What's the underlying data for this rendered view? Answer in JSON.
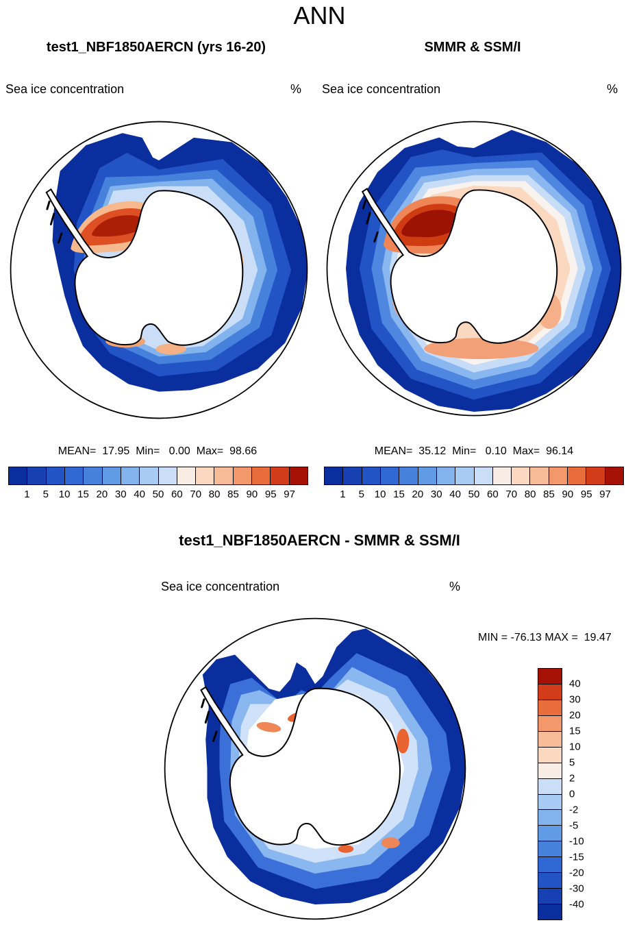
{
  "figure": {
    "title": "ANN"
  },
  "panels": {
    "model": {
      "title": "test1_NBF1850AERCN (yrs 16-20)",
      "variable": "Sea ice concentration",
      "units": "%",
      "stats_text": "MEAN=  17.95  Min=   0.00  Max=  98.66"
    },
    "obs": {
      "title": "SMMR & SSM/I",
      "variable": "Sea ice concentration",
      "units": "%",
      "stats_text": "MEAN=  35.12  Min=   0.10  Max=  96.14"
    },
    "diff": {
      "title": "test1_NBF1850AERCN - SMMR & SSM/I",
      "variable": "Sea ice concentration",
      "units": "%",
      "stats_text": "MIN = -76.13 MAX =  19.47"
    }
  },
  "chart_data": [
    {
      "type": "heatmap",
      "panel": "model",
      "title": "test1_NBF1850AERCN (yrs 16-20)",
      "variable": "Sea ice concentration",
      "units": "%",
      "projection": "antarctic-polar-stereographic",
      "season": "ANN",
      "stats": {
        "mean": 17.95,
        "min": 0.0,
        "max": 98.66
      },
      "levels": [
        1,
        5,
        10,
        15,
        20,
        30,
        40,
        50,
        60,
        70,
        80,
        85,
        90,
        95,
        97
      ],
      "palette": [
        "#0a2e9e",
        "#1741b3",
        "#2254c6",
        "#2f68d3",
        "#4681dc",
        "#619ae5",
        "#82b3ed",
        "#a7cbf3",
        "#cbdef7",
        "#f7ede4",
        "#fbd8c0",
        "#f8bb97",
        "#f3986a",
        "#e96d3b",
        "#d23c18",
        "#a51104"
      ],
      "legend_position": "bottom",
      "legend_orientation": "horizontal"
    },
    {
      "type": "heatmap",
      "panel": "observations",
      "title": "SMMR & SSM/I",
      "variable": "Sea ice concentration",
      "units": "%",
      "projection": "antarctic-polar-stereographic",
      "season": "ANN",
      "stats": {
        "mean": 35.12,
        "min": 0.1,
        "max": 96.14
      },
      "levels": [
        1,
        5,
        10,
        15,
        20,
        30,
        40,
        50,
        60,
        70,
        80,
        85,
        90,
        95,
        97
      ],
      "palette": [
        "#0a2e9e",
        "#1741b3",
        "#2254c6",
        "#2f68d3",
        "#4681dc",
        "#619ae5",
        "#82b3ed",
        "#a7cbf3",
        "#cbdef7",
        "#f7ede4",
        "#fbd8c0",
        "#f8bb97",
        "#f3986a",
        "#e96d3b",
        "#d23c18",
        "#a51104"
      ],
      "legend_position": "bottom",
      "legend_orientation": "horizontal"
    },
    {
      "type": "heatmap",
      "panel": "difference",
      "title": "test1_NBF1850AERCN - SMMR & SSM/I",
      "variable": "Sea ice concentration",
      "units": "%",
      "projection": "antarctic-polar-stereographic",
      "season": "ANN",
      "stats": {
        "min": -76.13,
        "max": 19.47
      },
      "levels": [
        40,
        30,
        20,
        15,
        10,
        5,
        2,
        0,
        -2,
        -5,
        -10,
        -15,
        -20,
        -30,
        -40
      ],
      "palette": [
        "#a51104",
        "#d23c18",
        "#e96d3b",
        "#f3986a",
        "#f8bb97",
        "#fbd8c0",
        "#f7ede4",
        "#cbdef7",
        "#a7cbf3",
        "#82b3ed",
        "#619ae5",
        "#4681dc",
        "#2f68d3",
        "#2254c6",
        "#1741b3",
        "#0a2e9e"
      ],
      "legend_position": "right",
      "legend_orientation": "vertical"
    }
  ]
}
